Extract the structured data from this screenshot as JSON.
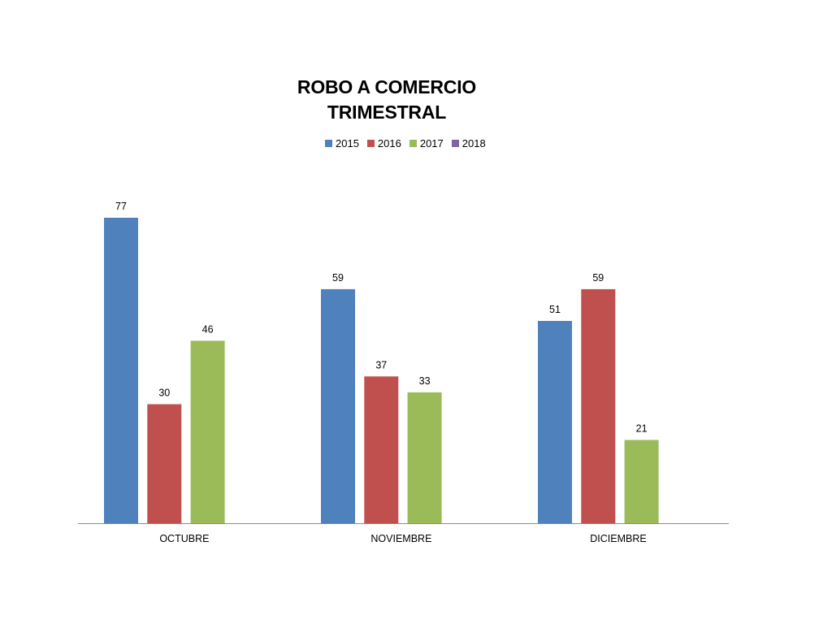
{
  "chart_data": {
    "type": "bar",
    "title_lines": [
      "ROBO A COMERCIO",
      "TRIMESTRAL"
    ],
    "categories": [
      "OCTUBRE",
      "NOVIEMBRE",
      "DICIEMBRE"
    ],
    "series": [
      {
        "name": "2015",
        "color": "#4F81BD",
        "values": [
          77,
          59,
          51
        ]
      },
      {
        "name": "2016",
        "color": "#C0504D",
        "values": [
          30,
          37,
          59
        ]
      },
      {
        "name": "2017",
        "color": "#9BBB59",
        "values": [
          46,
          33,
          21
        ]
      },
      {
        "name": "2018",
        "color": "#8064A2",
        "values": [
          null,
          null,
          null
        ]
      }
    ],
    "ylim": [
      0,
      77
    ],
    "grid": false,
    "legend_position": "top",
    "data_labels": true
  }
}
